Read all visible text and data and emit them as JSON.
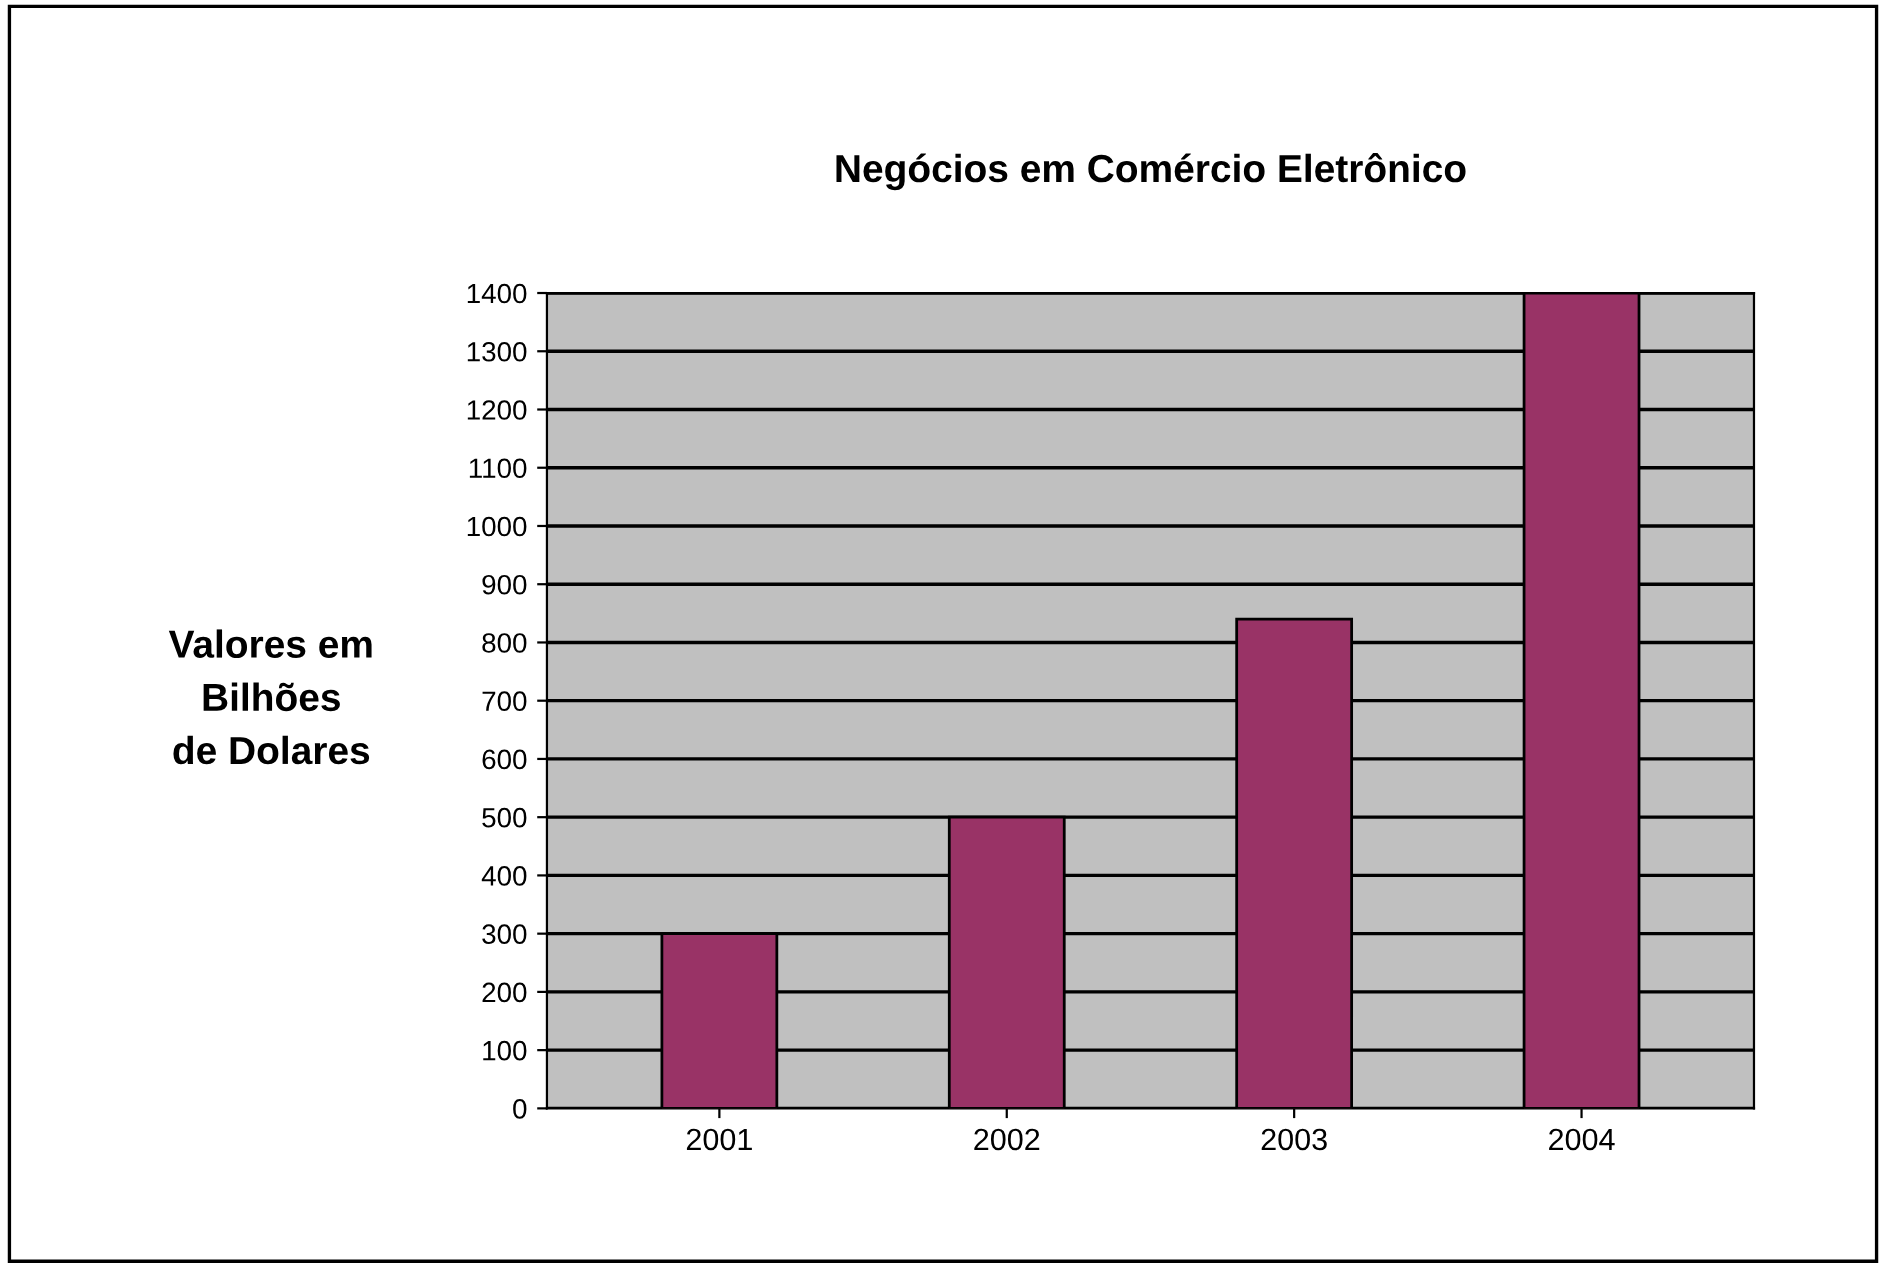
{
  "chart_data": {
    "type": "bar",
    "title": "Negócios em Comércio Eletrônico",
    "ylabel": "Valores em\nBilhões\nde Dolares",
    "categories": [
      "2001",
      "2002",
      "2003",
      "2004"
    ],
    "values": [
      300,
      500,
      840,
      1400
    ],
    "color": "#993366",
    "ylim": [
      0,
      1400
    ],
    "yticks": [
      0,
      100,
      200,
      300,
      400,
      500,
      600,
      700,
      800,
      900,
      1000,
      1100,
      1200,
      1300,
      1400
    ],
    "grid": "y"
  }
}
